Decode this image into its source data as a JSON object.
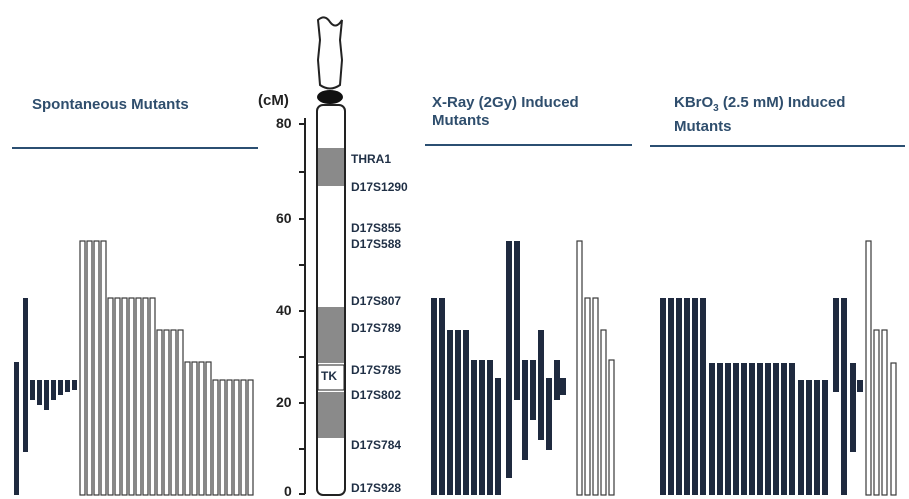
{
  "panels": {
    "spontaneous": {
      "title": "Spontaneous Mutants"
    },
    "xray": {
      "title_line1": "X-Ray (2Gy) Induced",
      "title_line2": "Mutants"
    },
    "kbro3": {
      "title_pre": "KBrO",
      "title_sub": "3",
      "title_post": " (2.5 mM) Induced",
      "title_line2": "Mutants"
    }
  },
  "axis": {
    "unit": "(cM)",
    "ticks": [
      "80",
      "60",
      "40",
      "20",
      "0"
    ]
  },
  "chromosome": {
    "tk_label": "TK",
    "markers": [
      "THRA1",
      "D17S1290",
      "D17S855",
      "D17S588",
      "D17S807",
      "D17S789",
      "D17S785",
      "D17S802",
      "D17S784",
      "D17S928"
    ]
  },
  "colors": {
    "dark_bar": "#1f2a3f",
    "outline_bar": "#3a3a3a",
    "band": "#8a8a8a",
    "text": "#2f4e6d",
    "rule": "#2b4f72"
  }
}
